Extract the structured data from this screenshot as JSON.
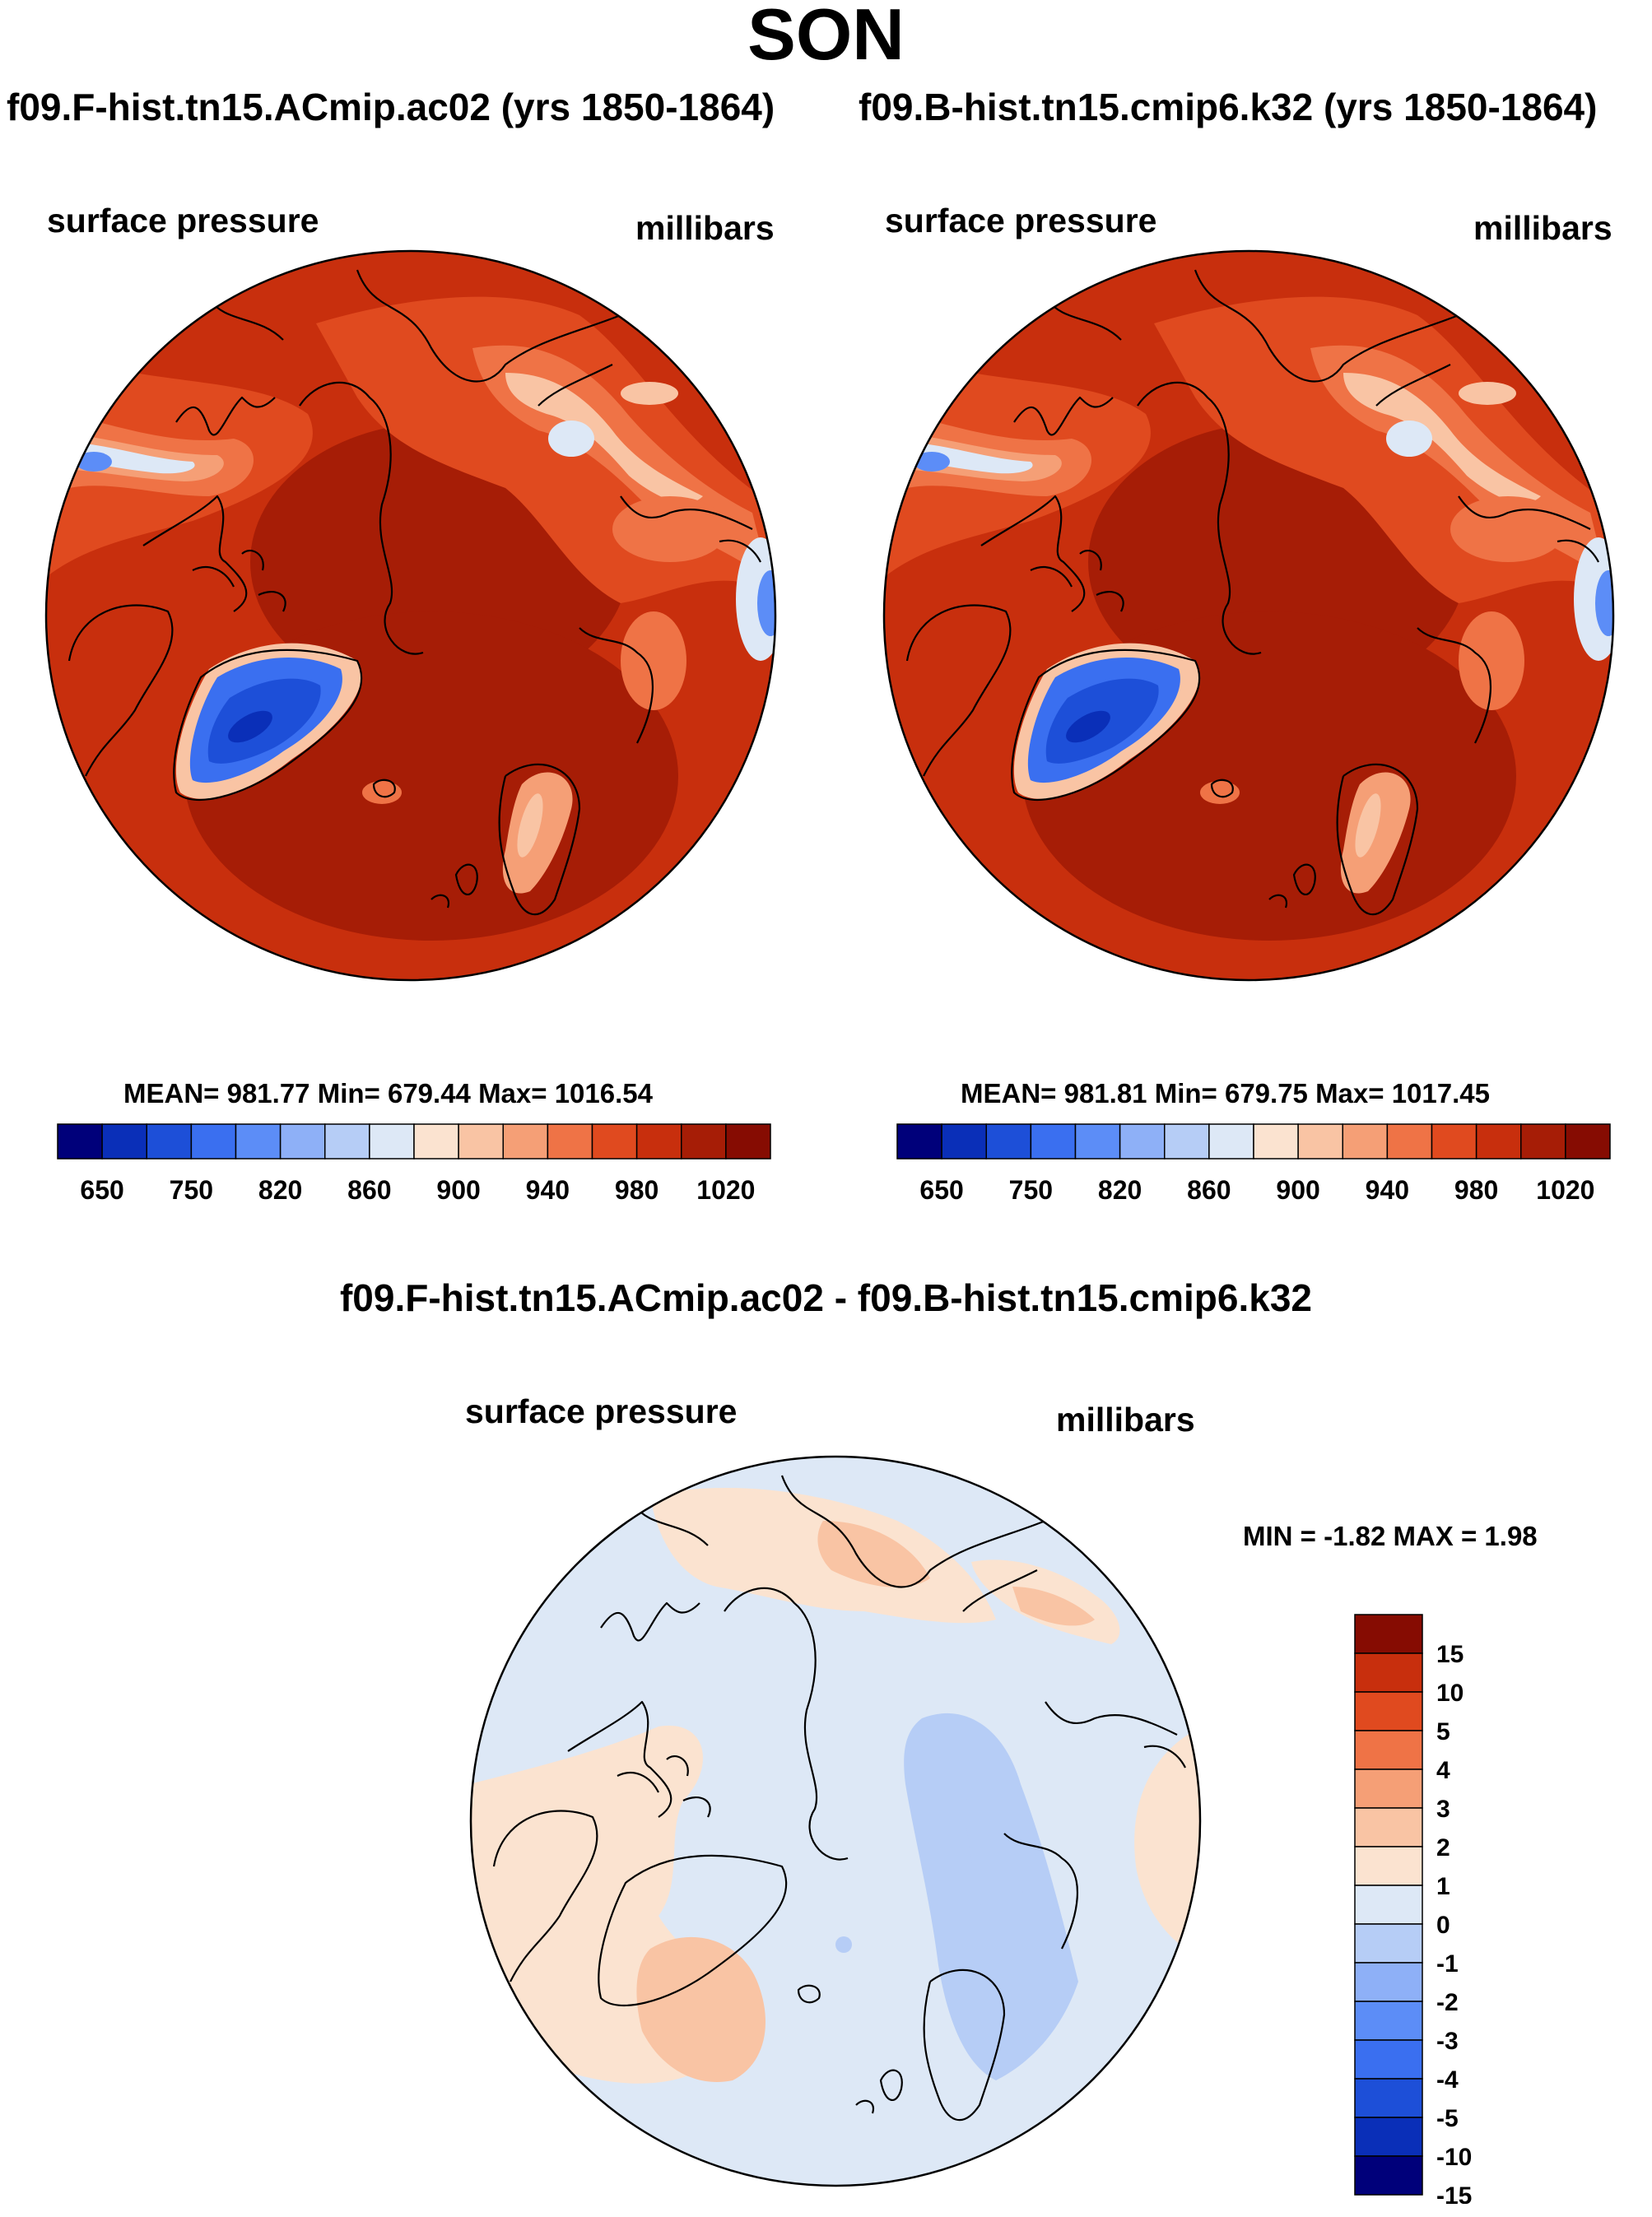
{
  "figure": {
    "title": "SON",
    "left_run_title": "f09.F-hist.tn15.ACmip.ac02 (yrs 1850-1864)",
    "right_run_title": "f09.B-hist.tn15.cmip6.k32 (yrs 1850-1864)",
    "diff_title": "f09.F-hist.tn15.ACmip.ac02 - f09.B-hist.tn15.cmip6.k32"
  },
  "panels": {
    "left": {
      "variable": "surface pressure",
      "units": "millibars",
      "stats": "MEAN= 981.77  Min= 679.44  Max= 1016.54"
    },
    "right": {
      "variable": "surface pressure",
      "units": "millibars",
      "stats": "MEAN= 981.81  Min= 679.75  Max= 1017.45"
    },
    "diff": {
      "variable": "surface pressure",
      "units": "millibars",
      "stats": "MIN =  -1.82 MAX =   1.98"
    }
  },
  "colorbar_abs": {
    "colors": [
      "#00007a",
      "#0a2fb8",
      "#1d4fd8",
      "#3a6ff0",
      "#5c8df7",
      "#8eb0f7",
      "#b6cdf6",
      "#dde8f6",
      "#fbe3d0",
      "#f9c4a4",
      "#f59f76",
      "#ef7346",
      "#e04a1f",
      "#c82f0d",
      "#a61d06",
      "#860c02"
    ],
    "labels": [
      "650",
      "750",
      "820",
      "860",
      "900",
      "940",
      "980",
      "1020"
    ]
  },
  "colorbar_diff": {
    "colors": [
      "#860c02",
      "#c82f0d",
      "#e04a1f",
      "#ef7346",
      "#f59f76",
      "#f9c4a4",
      "#fbe3d0",
      "#dde8f6",
      "#b6cdf6",
      "#8eb0f7",
      "#5c8df7",
      "#3a6ff0",
      "#1d4fd8",
      "#0a2fb8",
      "#00007a"
    ],
    "labels": [
      "15",
      "10",
      "5",
      "4",
      "3",
      "2",
      "1",
      "0",
      "-1",
      "-2",
      "-3",
      "-4",
      "-5",
      "-10",
      "-15"
    ]
  },
  "chart_data": [
    {
      "type": "heatmap",
      "title": "f09.F-hist.tn15.ACmip.ac02 (yrs 1850-1864)",
      "subtitle": "surface pressure",
      "units": "millibars",
      "projection": "north polar stereographic",
      "mean": 981.77,
      "min": 679.44,
      "max": 1016.54,
      "contour_levels": [
        650,
        700,
        750,
        800,
        820,
        840,
        860,
        880,
        900,
        920,
        940,
        960,
        980,
        1000,
        1020
      ]
    },
    {
      "type": "heatmap",
      "title": "f09.B-hist.tn15.cmip6.k32 (yrs 1850-1864)",
      "subtitle": "surface pressure",
      "units": "millibars",
      "projection": "north polar stereographic",
      "mean": 981.81,
      "min": 679.75,
      "max": 1017.45,
      "contour_levels": [
        650,
        700,
        750,
        800,
        820,
        840,
        860,
        880,
        900,
        920,
        940,
        960,
        980,
        1000,
        1020
      ]
    },
    {
      "type": "heatmap",
      "title": "f09.F-hist.tn15.ACmip.ac02 - f09.B-hist.tn15.cmip6.k32",
      "subtitle": "surface pressure",
      "units": "millibars",
      "projection": "north polar stereographic",
      "min": -1.82,
      "max": 1.98,
      "contour_levels": [
        -15,
        -10,
        -5,
        -4,
        -3,
        -2,
        -1,
        0,
        1,
        2,
        3,
        4,
        5,
        10,
        15
      ]
    }
  ]
}
